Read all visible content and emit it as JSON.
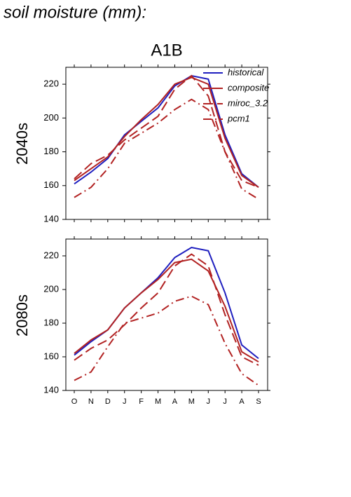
{
  "page_title": "soil moisture (mm):",
  "panel_title": "A1B",
  "chart_data": [
    {
      "type": "line",
      "ylabel": "2040s",
      "ylim": [
        140,
        230
      ],
      "yticks": [
        140,
        160,
        180,
        200,
        220
      ],
      "series": [
        {
          "name": "historical",
          "color": "#1f1fbf",
          "dash": "solid",
          "values": [
            161,
            168,
            176,
            190,
            198,
            206,
            219,
            225,
            223,
            190,
            167,
            159
          ]
        },
        {
          "name": "composite",
          "color": "#b22222",
          "dash": "solid",
          "values": [
            163,
            170,
            177,
            189,
            199,
            208,
            220,
            224,
            220,
            188,
            166,
            159
          ]
        },
        {
          "name": "miroc_3.2",
          "color": "#b22222",
          "dash": "long",
          "values": [
            164,
            173,
            178,
            187,
            194,
            201,
            217,
            225,
            213,
            180,
            163,
            159
          ]
        },
        {
          "name": "pcm1",
          "color": "#b22222",
          "dash": "dashdot",
          "values": [
            153,
            159,
            170,
            185,
            191,
            197,
            205,
            211,
            205,
            180,
            158,
            152
          ]
        }
      ]
    },
    {
      "type": "line",
      "ylabel": "2080s",
      "ylim": [
        140,
        230
      ],
      "yticks": [
        140,
        160,
        180,
        200,
        220
      ],
      "categories": [
        "O",
        "N",
        "D",
        "J",
        "F",
        "M",
        "A",
        "M",
        "J",
        "J",
        "A",
        "S"
      ],
      "series": [
        {
          "color": "#1f1fbf",
          "dash": "solid",
          "values": [
            161,
            169,
            176,
            189,
            198,
            207,
            219,
            225,
            223,
            198,
            167,
            159
          ]
        },
        {
          "color": "#b22222",
          "dash": "solid",
          "values": [
            162,
            170,
            176,
            189,
            198,
            206,
            216,
            218,
            211,
            190,
            163,
            157
          ]
        },
        {
          "color": "#b22222",
          "dash": "long",
          "values": [
            158,
            165,
            170,
            179,
            189,
            198,
            214,
            221,
            214,
            185,
            160,
            155
          ]
        },
        {
          "color": "#b22222",
          "dash": "dashdot",
          "values": [
            146,
            151,
            166,
            180,
            183,
            186,
            193,
            196,
            191,
            168,
            150,
            143
          ]
        }
      ]
    }
  ]
}
